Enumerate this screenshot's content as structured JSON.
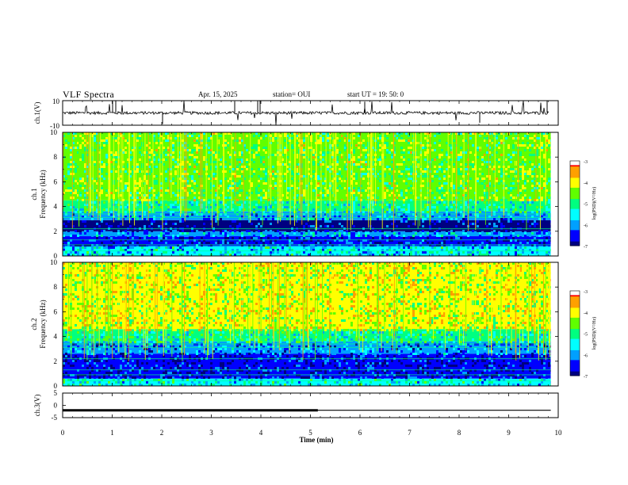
{
  "header": {
    "title": "VLF Spectra",
    "date": "Apr. 15, 2025",
    "station": "station= OUI",
    "start": "start  UT =   19: 50: 0"
  },
  "colors": {
    "colormap": [
      "#000080",
      "#0000ff",
      "#00a0ff",
      "#00ffff",
      "#00ff80",
      "#60ff00",
      "#ffff00",
      "#ffa000",
      "#ff0000",
      "#ffffff"
    ],
    "waveform": "#000000",
    "axes": "#000000"
  },
  "chart_data": [
    {
      "type": "line",
      "panel": "ch1-waveform",
      "ylabel": "ch.1(V)",
      "ylim": [
        -10,
        10
      ],
      "yticks": [
        "10",
        "-10"
      ],
      "xlim": [
        0,
        10
      ],
      "baseline": 0,
      "note_spikes": "intermittent spikes reaching ~+10 V"
    },
    {
      "type": "heatmap",
      "panel": "ch1-spectrogram",
      "ylabel_channel": "ch.1",
      "ylabel": "Frequency  (kHz)",
      "ylim": [
        0,
        10
      ],
      "yticks": [
        "0",
        "2",
        "4",
        "6",
        "8",
        "10"
      ],
      "xlim": [
        0,
        9.85
      ],
      "colorbar": {
        "label": "log(PSD)(V²/Hz)",
        "range": [
          -7,
          -3
        ],
        "ticks": [
          "-3",
          "-4",
          "-5",
          "-6",
          "-7"
        ]
      },
      "bands": [
        {
          "f": [
            0,
            0.8
          ],
          "level": -5.6
        },
        {
          "f": [
            0.8,
            1.6
          ],
          "level": -6.6
        },
        {
          "f": [
            1.6,
            2.0
          ],
          "level": -5.8
        },
        {
          "f": [
            2.0,
            2.9
          ],
          "level": -6.9
        },
        {
          "f": [
            2.9,
            3.6
          ],
          "level": -5.9
        },
        {
          "f": [
            3.6,
            4.5
          ],
          "level": -5.2
        },
        {
          "f": [
            4.5,
            10
          ],
          "level": -4.6
        }
      ]
    },
    {
      "type": "heatmap",
      "panel": "ch2-spectrogram",
      "ylabel_channel": "ch.2",
      "ylabel": "Frequency  (kHz)",
      "ylim": [
        0,
        10
      ],
      "yticks": [
        "0",
        "2",
        "4",
        "6",
        "8",
        "10"
      ],
      "xlim": [
        0,
        9.85
      ],
      "colorbar": {
        "label": "log(PSD)(V²/Hz)",
        "range": [
          -7,
          -3
        ],
        "ticks": [
          "-3",
          "-4",
          "-5",
          "-6",
          "-7"
        ]
      },
      "bands": [
        {
          "f": [
            0,
            0.6
          ],
          "level": -5.4
        },
        {
          "f": [
            0.6,
            2.6
          ],
          "level": -6.7
        },
        {
          "f": [
            2.6,
            3.6
          ],
          "level": -6.1
        },
        {
          "f": [
            3.6,
            4.6
          ],
          "level": -5.2
        },
        {
          "f": [
            4.6,
            10
          ],
          "level": -4.2
        }
      ]
    },
    {
      "type": "line",
      "panel": "ch3-trace",
      "ylabel": "ch.3(V)",
      "ylim": [
        -5,
        5
      ],
      "yticks": [
        "5",
        "0",
        "-5"
      ],
      "xlim": [
        0,
        10
      ],
      "xlabel": "Time  (min)",
      "xticks": [
        "0",
        "1",
        "2",
        "3",
        "4",
        "5",
        "6",
        "7",
        "8",
        "9",
        "10"
      ],
      "series": [
        {
          "x": [
            0,
            5.15
          ],
          "y": [
            -2,
            -2
          ],
          "weight": "thick"
        },
        {
          "x": [
            5.15,
            9.85
          ],
          "y": [
            -2,
            -2
          ],
          "weight": "thin"
        }
      ]
    }
  ]
}
